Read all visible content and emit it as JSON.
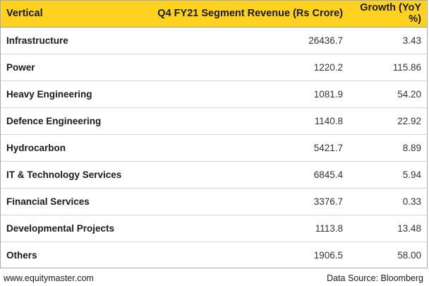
{
  "chart_data": {
    "type": "table",
    "columns": [
      "Vertical",
      "Q4 FY21 Segment Revenue (Rs Crore)",
      "Growth (YoY %)"
    ],
    "rows": [
      [
        "Infrastructure",
        "26436.7",
        "3.43"
      ],
      [
        "Power",
        "1220.2",
        "115.86"
      ],
      [
        "Heavy Engineering",
        "1081.9",
        "54.20"
      ],
      [
        "Defence Engineering",
        "1140.8",
        "22.92"
      ],
      [
        "Hydrocarbon",
        "5421.7",
        "8.89"
      ],
      [
        "IT & Technology Services",
        "6845.4",
        "5.94"
      ],
      [
        "Financial Services",
        "3376.7",
        "0.33"
      ],
      [
        "Developmental Projects",
        "1113.8",
        "13.48"
      ],
      [
        "Others",
        "1906.5",
        "58.00"
      ]
    ]
  },
  "footer": {
    "website": "www.equitymaster.com",
    "source": "Data Source: Bloomberg"
  },
  "colors": {
    "header_bg": "#ffd21f",
    "border": "#a9a9a9"
  }
}
